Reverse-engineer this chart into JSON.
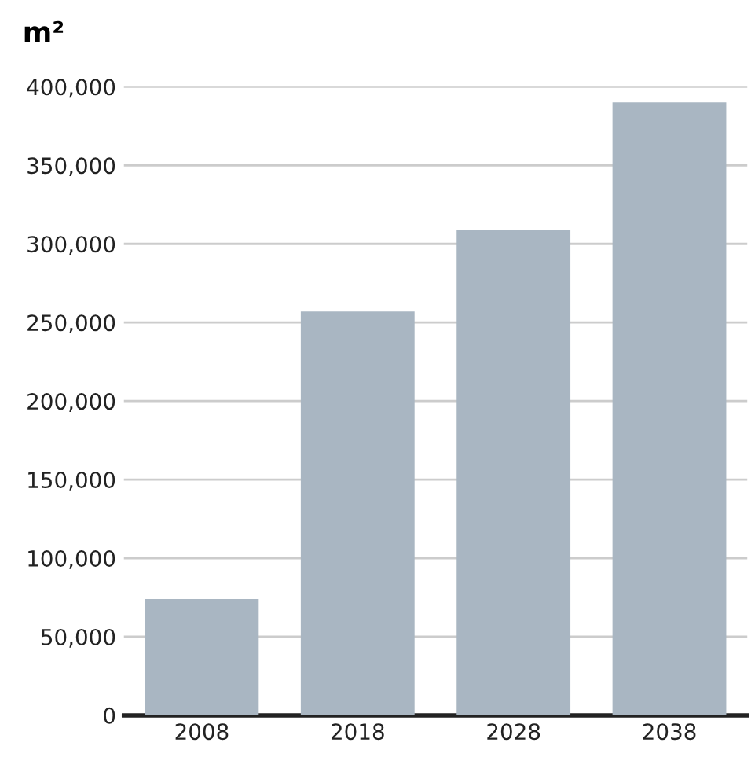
{
  "chart_data": {
    "type": "bar",
    "ylabel": "m²",
    "categories": [
      "2008",
      "2018",
      "2028",
      "2038"
    ],
    "values": [
      74000,
      257000,
      309000,
      390000
    ],
    "color": "#a9b6c2",
    "ylim": [
      0,
      400000
    ],
    "yticks": [
      0,
      {
        "value": 50000,
        "label": "50,000"
      },
      {
        "value": 100000,
        "label": "100,000"
      },
      {
        "value": 150000,
        "label": "150,000"
      },
      {
        "value": 200000,
        "label": "200,000"
      },
      {
        "value": 250000,
        "label": "250,000"
      },
      {
        "value": 300000,
        "label": "300,000"
      },
      {
        "value": 350000,
        "label": "350,000"
      },
      {
        "value": 400000,
        "label": "400,000"
      }
    ],
    "grid": "y"
  }
}
